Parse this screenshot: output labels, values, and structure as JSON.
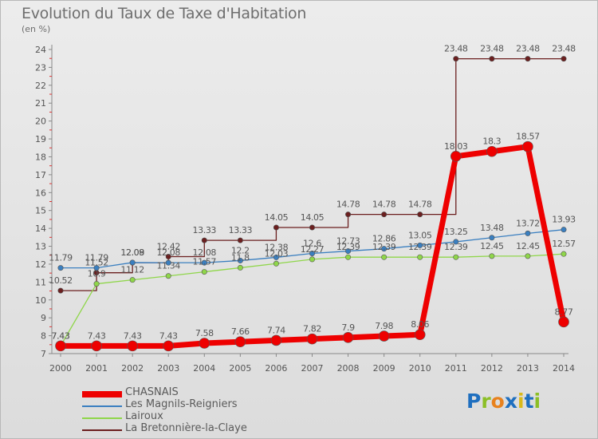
{
  "header": {
    "title": "Evolution du Taux de Taxe d'Habitation",
    "subtitle": "(en %)"
  },
  "logo": {
    "letters": [
      "P",
      "r",
      "o",
      "x",
      "i",
      "t",
      "i"
    ],
    "colors": [
      "#1f6fbf",
      "#8cbf26",
      "#e8821e",
      "#1f6fbf",
      "#d9b91a",
      "#1f6fbf",
      "#8cbf26"
    ]
  },
  "chart_data": {
    "type": "line",
    "title": "Evolution du Taux de Taxe d'Habitation",
    "ylabel": "(en %)",
    "xlabel": "",
    "x": [
      2000,
      2001,
      2002,
      2003,
      2004,
      2005,
      2006,
      2007,
      2008,
      2009,
      2010,
      2011,
      2012,
      2013,
      2014
    ],
    "ylim": [
      7,
      24
    ],
    "yticks": [
      7,
      8,
      9,
      10,
      11,
      12,
      13,
      14,
      15,
      16,
      17,
      18,
      19,
      20,
      21,
      22,
      23,
      24
    ],
    "grid": false,
    "legend_position": "bottom-left",
    "series": [
      {
        "name": "La Bretonnière-la-Claye",
        "color": "#6b1f1f",
        "values": [
          10.52,
          11.52,
          12.08,
          12.42,
          13.33,
          13.33,
          14.05,
          14.05,
          14.78,
          14.78,
          14.78,
          23.48,
          23.48,
          23.48,
          23.48
        ],
        "labels": [
          "10.52",
          "11.52",
          "12.08",
          "12.42",
          "13.33",
          "13.33",
          "14.05",
          "14.05",
          "14.78",
          "14.78",
          "14.78",
          "23.48",
          "23.48",
          "23.48",
          "23.48"
        ]
      },
      {
        "name": "Les Magnils-Reigniers",
        "color": "#3a7fc0",
        "values": [
          11.79,
          11.79,
          12.09,
          12.08,
          12.08,
          12.2,
          12.38,
          12.6,
          12.73,
          12.86,
          13.05,
          13.25,
          13.48,
          13.72,
          13.93
        ],
        "labels": [
          "11.79",
          "11.79",
          "12.09",
          "12.08",
          "12.08",
          "12.2",
          "12.38",
          "12.6",
          "12.73",
          "12.86",
          "13.05",
          "13.25",
          "13.48",
          "13.72",
          "13.93"
        ]
      },
      {
        "name": "Lairoux",
        "color": "#8fd64a",
        "values": [
          7.43,
          10.9,
          11.12,
          11.34,
          11.57,
          11.8,
          12.03,
          12.27,
          12.39,
          12.39,
          12.39,
          12.39,
          12.45,
          12.45,
          12.57
        ],
        "labels": [
          "7.43",
          "10.9",
          "11.12",
          "11.34",
          "11.57",
          "11.8",
          "12.03",
          "12.27",
          "12.39",
          "12.39",
          "12.39",
          "12.39",
          "12.45",
          "12.45",
          "12.57"
        ]
      },
      {
        "name": "CHASNAIS",
        "color": "#ee0000",
        "values": [
          7.43,
          7.43,
          7.43,
          7.43,
          7.58,
          7.66,
          7.74,
          7.82,
          7.9,
          7.98,
          8.06,
          18.03,
          18.3,
          18.57,
          8.77
        ],
        "labels": [
          "7.43",
          "7.43",
          "7.43",
          "7.43",
          "7.58",
          "7.66",
          "7.74",
          "7.82",
          "7.9",
          "7.98",
          "8.06",
          "18.03",
          "18.3",
          "18.57",
          "8.77"
        ]
      }
    ],
    "legend": [
      "CHASNAIS",
      "Les Magnils-Reigniers",
      "Lairoux",
      "La Bretonnière-la-Claye"
    ]
  }
}
